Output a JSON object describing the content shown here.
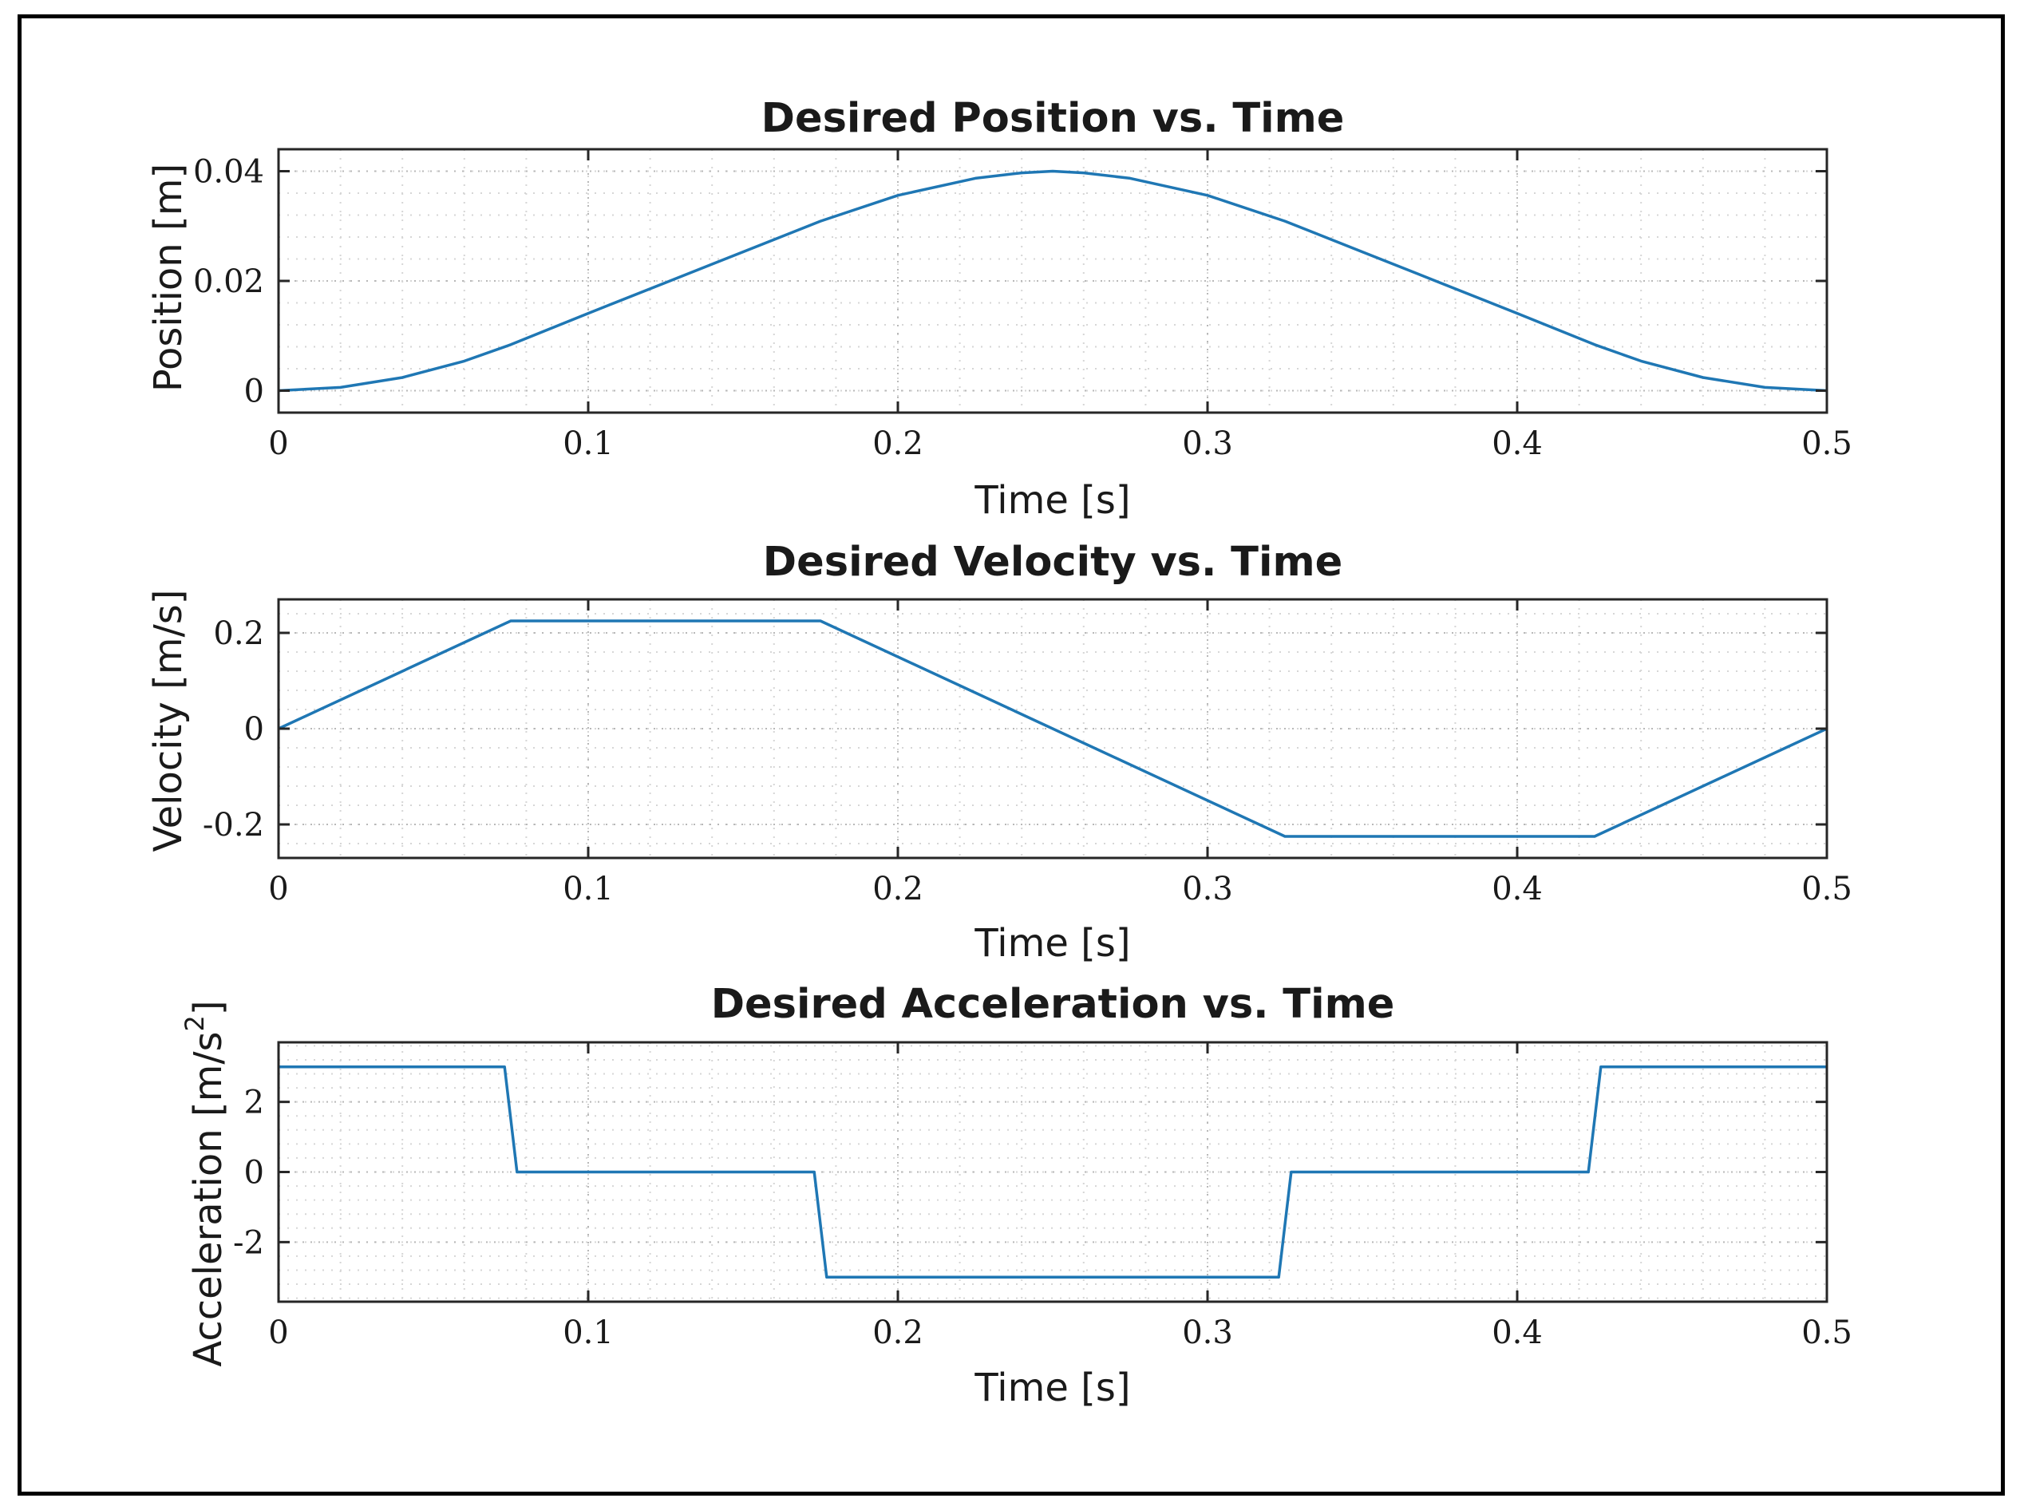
{
  "colors": {
    "line": "#1f77b4",
    "axis": "#262626",
    "grid": "#b8b8b8"
  },
  "chart_data": [
    {
      "type": "line",
      "title": "Desired Position vs. Time",
      "xlabel": "Time [s]",
      "ylabel": "Position [m]",
      "xlim": [
        0,
        0.5
      ],
      "ylim": [
        -0.004,
        0.044
      ],
      "xticks": [
        0,
        0.1,
        0.2,
        0.3,
        0.4,
        0.5
      ],
      "xtick_labels": [
        "0",
        "0.1",
        "0.2",
        "0.3",
        "0.4",
        "0.5"
      ],
      "yticks": [
        0,
        0.02,
        0.04
      ],
      "ytick_labels": [
        "0",
        "0.02",
        "0.04"
      ],
      "grid": true,
      "x": [
        0,
        0.02,
        0.04,
        0.06,
        0.075,
        0.1,
        0.125,
        0.15,
        0.175,
        0.2,
        0.225,
        0.24,
        0.25,
        0.26,
        0.275,
        0.3,
        0.325,
        0.35,
        0.375,
        0.4,
        0.425,
        0.44,
        0.46,
        0.48,
        0.5
      ],
      "y": [
        0,
        0.0006,
        0.0024,
        0.0054,
        0.0084,
        0.0141,
        0.0197,
        0.0253,
        0.0309,
        0.0356,
        0.0387,
        0.0397,
        0.04,
        0.0397,
        0.0387,
        0.0356,
        0.0309,
        0.0253,
        0.0197,
        0.0141,
        0.0084,
        0.0054,
        0.0024,
        0.0006,
        0
      ]
    },
    {
      "type": "line",
      "title": "Desired Velocity vs. Time",
      "xlabel": "Time [s]",
      "ylabel": "Velocity [m/s]",
      "xlim": [
        0,
        0.5
      ],
      "ylim": [
        -0.27,
        0.27
      ],
      "xticks": [
        0,
        0.1,
        0.2,
        0.3,
        0.4,
        0.5
      ],
      "xtick_labels": [
        "0",
        "0.1",
        "0.2",
        "0.3",
        "0.4",
        "0.5"
      ],
      "yticks": [
        -0.2,
        0,
        0.2
      ],
      "ytick_labels": [
        "-0.2",
        "0",
        "0.2"
      ],
      "grid": true,
      "x": [
        0,
        0.075,
        0.175,
        0.325,
        0.425,
        0.5
      ],
      "y": [
        0,
        0.225,
        0.225,
        -0.225,
        -0.225,
        0
      ]
    },
    {
      "type": "line",
      "title": "Desired Acceleration vs. Time",
      "xlabel": "Time [s]",
      "ylabel": "Acceleration [m/s",
      "ylabel_sup": "2",
      "ylabel_end": "]",
      "xlim": [
        0,
        0.5
      ],
      "ylim": [
        -3.7,
        3.7
      ],
      "xticks": [
        0,
        0.1,
        0.2,
        0.3,
        0.4,
        0.5
      ],
      "xtick_labels": [
        "0",
        "0.1",
        "0.2",
        "0.3",
        "0.4",
        "0.5"
      ],
      "yticks": [
        -2,
        0,
        2
      ],
      "ytick_labels": [
        "-2",
        "0",
        "2"
      ],
      "grid": true,
      "x": [
        0,
        0.073,
        0.077,
        0.173,
        0.177,
        0.323,
        0.327,
        0.423,
        0.427,
        0.5
      ],
      "y": [
        3,
        3,
        0,
        0,
        -3,
        -3,
        0,
        0,
        3,
        3
      ]
    }
  ]
}
